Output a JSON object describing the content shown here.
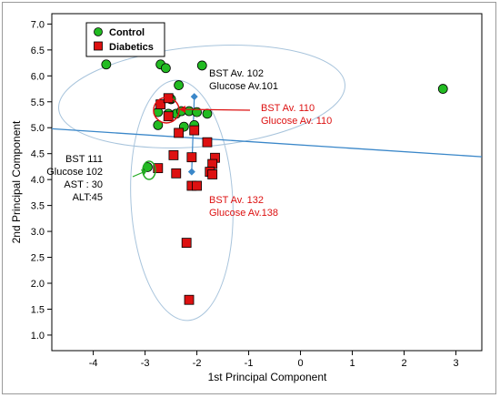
{
  "chart_data": {
    "type": "scatter",
    "title": "",
    "xlabel": "1st Principal Component",
    "ylabel": "2nd Principal Component",
    "xlim": [
      -4.8,
      3.5
    ],
    "ylim": [
      0.7,
      7.2
    ],
    "x_ticks": [
      -4,
      -3,
      -2,
      -1,
      0,
      1,
      2,
      3
    ],
    "y_ticks": [
      1.0,
      1.5,
      2.0,
      2.5,
      3.0,
      3.5,
      4.0,
      4.5,
      5.0,
      5.5,
      6.0,
      6.5,
      7.0
    ],
    "x_tick_labels": [
      "-4",
      "-3",
      "-2",
      "-1",
      "0",
      "1",
      "2",
      "3"
    ],
    "y_tick_labels": [
      "1.0",
      "1.5",
      "2.0",
      "2.5",
      "3.0",
      "3.5",
      "4.0",
      "4.5",
      "5.0",
      "5.5",
      "6.0",
      "6.5",
      "7.0"
    ],
    "grid": false,
    "legend_position": "top-left",
    "series": [
      {
        "name": "Control",
        "marker": "circle",
        "color": "#22bb22",
        "points": [
          [
            -3.75,
            6.22
          ],
          [
            -2.7,
            6.22
          ],
          [
            -2.6,
            6.15
          ],
          [
            -1.9,
            6.2
          ],
          [
            -2.35,
            5.82
          ],
          [
            -2.5,
            5.55
          ],
          [
            -2.75,
            5.3
          ],
          [
            -2.55,
            5.27
          ],
          [
            -2.4,
            5.27
          ],
          [
            -2.3,
            5.32
          ],
          [
            -2.15,
            5.32
          ],
          [
            -2.0,
            5.3
          ],
          [
            -1.8,
            5.27
          ],
          [
            -2.75,
            5.05
          ],
          [
            -2.25,
            5.02
          ],
          [
            -2.05,
            5.05
          ],
          [
            -2.95,
            4.24
          ],
          [
            2.75,
            5.75
          ]
        ]
      },
      {
        "name": "Diabetics",
        "marker": "square",
        "color": "#dd1111",
        "points": [
          [
            -2.7,
            5.45
          ],
          [
            -2.55,
            5.57
          ],
          [
            -2.55,
            5.22
          ],
          [
            -2.35,
            4.9
          ],
          [
            -2.05,
            4.95
          ],
          [
            -1.8,
            4.72
          ],
          [
            -2.45,
            4.47
          ],
          [
            -2.1,
            4.43
          ],
          [
            -1.65,
            4.42
          ],
          [
            -1.7,
            4.3
          ],
          [
            -1.75,
            4.15
          ],
          [
            -2.75,
            4.22
          ],
          [
            -2.4,
            4.12
          ],
          [
            -1.7,
            4.1
          ],
          [
            -2.1,
            3.88
          ],
          [
            -2.0,
            3.88
          ],
          [
            -2.2,
            2.78
          ],
          [
            -2.15,
            1.68
          ]
        ]
      }
    ],
    "group_centroids": [
      {
        "x": -2.05,
        "y": 5.6
      },
      {
        "x": -2.1,
        "y": 4.15
      }
    ],
    "trend_line": {
      "x": [
        -4.8,
        3.5
      ],
      "y": [
        4.98,
        4.44
      ],
      "color": "#3a87c9"
    },
    "ellipse_color": "#a8c4dc",
    "annotations": [
      {
        "lines": [
          "BST Av. 102",
          "Glucose Av.101"
        ],
        "color": "#000000"
      },
      {
        "lines": [
          "BST Av. 110",
          "Glucose Av. 110"
        ],
        "color": "#dd1111"
      },
      {
        "lines": [
          "BST  111",
          "Glucose 102",
          "AST : 30",
          "ALT:45"
        ],
        "color": "#000000"
      },
      {
        "lines": [
          "BST Av. 132",
          "Glucose Av.138"
        ],
        "color": "#dd1111"
      }
    ]
  }
}
